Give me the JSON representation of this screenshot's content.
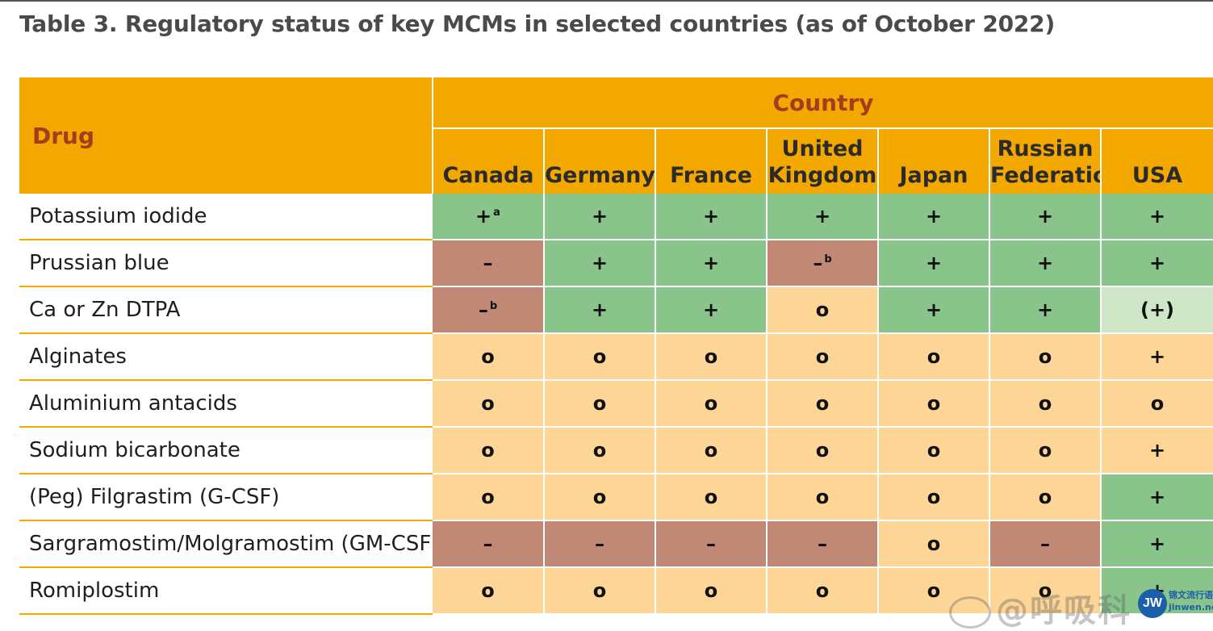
{
  "title": "Table 3. Regulatory status of key MCMs in selected countries (as of October 2022)",
  "header": {
    "drug_label": "Drug",
    "country_label": "Country",
    "countries": [
      {
        "line1": "",
        "line2": "Canada"
      },
      {
        "line1": "",
        "line2": "Germany"
      },
      {
        "line1": "",
        "line2": "France"
      },
      {
        "line1": "United",
        "line2": "Kingdom"
      },
      {
        "line1": "",
        "line2": "Japan"
      },
      {
        "line1": "Russian",
        "line2": "Federation"
      },
      {
        "line1": "",
        "line2": "USA"
      }
    ]
  },
  "rows": [
    {
      "drug": "Potassium iodide",
      "cells": [
        {
          "value": "+",
          "sup": "a",
          "status": "green"
        },
        {
          "value": "+",
          "sup": "",
          "status": "green"
        },
        {
          "value": "+",
          "sup": "",
          "status": "green"
        },
        {
          "value": "+",
          "sup": "",
          "status": "green"
        },
        {
          "value": "+",
          "sup": "",
          "status": "green"
        },
        {
          "value": "+",
          "sup": "",
          "status": "green"
        },
        {
          "value": "+",
          "sup": "",
          "status": "green"
        }
      ]
    },
    {
      "drug": "Prussian blue",
      "cells": [
        {
          "value": "–",
          "sup": "",
          "status": "red"
        },
        {
          "value": "+",
          "sup": "",
          "status": "green"
        },
        {
          "value": "+",
          "sup": "",
          "status": "green"
        },
        {
          "value": "–",
          "sup": "b",
          "status": "red"
        },
        {
          "value": "+",
          "sup": "",
          "status": "green"
        },
        {
          "value": "+",
          "sup": "",
          "status": "green"
        },
        {
          "value": "+",
          "sup": "",
          "status": "green"
        }
      ]
    },
    {
      "drug": "Ca or Zn DTPA",
      "cells": [
        {
          "value": "–",
          "sup": "b",
          "status": "red"
        },
        {
          "value": "+",
          "sup": "",
          "status": "green"
        },
        {
          "value": "+",
          "sup": "",
          "status": "green"
        },
        {
          "value": "o",
          "sup": "",
          "status": "peach"
        },
        {
          "value": "+",
          "sup": "",
          "status": "green"
        },
        {
          "value": "+",
          "sup": "",
          "status": "green"
        },
        {
          "value": "(+)",
          "sup": "",
          "status": "light"
        }
      ]
    },
    {
      "drug": "Alginates",
      "cells": [
        {
          "value": "o",
          "sup": "",
          "status": "peach"
        },
        {
          "value": "o",
          "sup": "",
          "status": "peach"
        },
        {
          "value": "o",
          "sup": "",
          "status": "peach"
        },
        {
          "value": "o",
          "sup": "",
          "status": "peach"
        },
        {
          "value": "o",
          "sup": "",
          "status": "peach"
        },
        {
          "value": "o",
          "sup": "",
          "status": "peach"
        },
        {
          "value": "+",
          "sup": "",
          "status": "peach"
        }
      ]
    },
    {
      "drug": "Aluminium antacids",
      "cells": [
        {
          "value": "o",
          "sup": "",
          "status": "peach"
        },
        {
          "value": "o",
          "sup": "",
          "status": "peach"
        },
        {
          "value": "o",
          "sup": "",
          "status": "peach"
        },
        {
          "value": "o",
          "sup": "",
          "status": "peach"
        },
        {
          "value": "o",
          "sup": "",
          "status": "peach"
        },
        {
          "value": "o",
          "sup": "",
          "status": "peach"
        },
        {
          "value": "o",
          "sup": "",
          "status": "peach"
        }
      ]
    },
    {
      "drug": "Sodium bicarbonate",
      "cells": [
        {
          "value": "o",
          "sup": "",
          "status": "peach"
        },
        {
          "value": "o",
          "sup": "",
          "status": "peach"
        },
        {
          "value": "o",
          "sup": "",
          "status": "peach"
        },
        {
          "value": "o",
          "sup": "",
          "status": "peach"
        },
        {
          "value": "o",
          "sup": "",
          "status": "peach"
        },
        {
          "value": "o",
          "sup": "",
          "status": "peach"
        },
        {
          "value": "+",
          "sup": "",
          "status": "peach"
        }
      ]
    },
    {
      "drug": "(Peg) Filgrastim (G-CSF)",
      "cells": [
        {
          "value": "o",
          "sup": "",
          "status": "peach"
        },
        {
          "value": "o",
          "sup": "",
          "status": "peach"
        },
        {
          "value": "o",
          "sup": "",
          "status": "peach"
        },
        {
          "value": "o",
          "sup": "",
          "status": "peach"
        },
        {
          "value": "o",
          "sup": "",
          "status": "peach"
        },
        {
          "value": "o",
          "sup": "",
          "status": "peach"
        },
        {
          "value": "+",
          "sup": "",
          "status": "green"
        }
      ]
    },
    {
      "drug": "Sargramostim/Molgramostim (GM-CSF)",
      "cells": [
        {
          "value": "–",
          "sup": "",
          "status": "red"
        },
        {
          "value": "–",
          "sup": "",
          "status": "red"
        },
        {
          "value": "–",
          "sup": "",
          "status": "red"
        },
        {
          "value": "–",
          "sup": "",
          "status": "red"
        },
        {
          "value": "o",
          "sup": "",
          "status": "peach"
        },
        {
          "value": "–",
          "sup": "",
          "status": "red"
        },
        {
          "value": "+",
          "sup": "",
          "status": "green"
        }
      ]
    },
    {
      "drug": "Romiplostim",
      "cells": [
        {
          "value": "o",
          "sup": "",
          "status": "peach"
        },
        {
          "value": "o",
          "sup": "",
          "status": "peach"
        },
        {
          "value": "o",
          "sup": "",
          "status": "peach"
        },
        {
          "value": "o",
          "sup": "",
          "status": "peach"
        },
        {
          "value": "o",
          "sup": "",
          "status": "peach"
        },
        {
          "value": "o",
          "sup": "",
          "status": "peach"
        },
        {
          "value": "+",
          "sup": "",
          "status": "green"
        }
      ]
    }
  ],
  "colors": {
    "header_bg": "#f3a800",
    "header_text": "#a53b1f",
    "green": "#89c58a",
    "red": "#c08875",
    "peach": "#fcd597",
    "light": "#cfe6c8"
  },
  "watermark": {
    "text": "@呼吸科",
    "icon": "weibo-icon"
  },
  "site_logo": {
    "mark": "JW",
    "line1": "锦文流行语",
    "line2": "jinwen.net"
  }
}
